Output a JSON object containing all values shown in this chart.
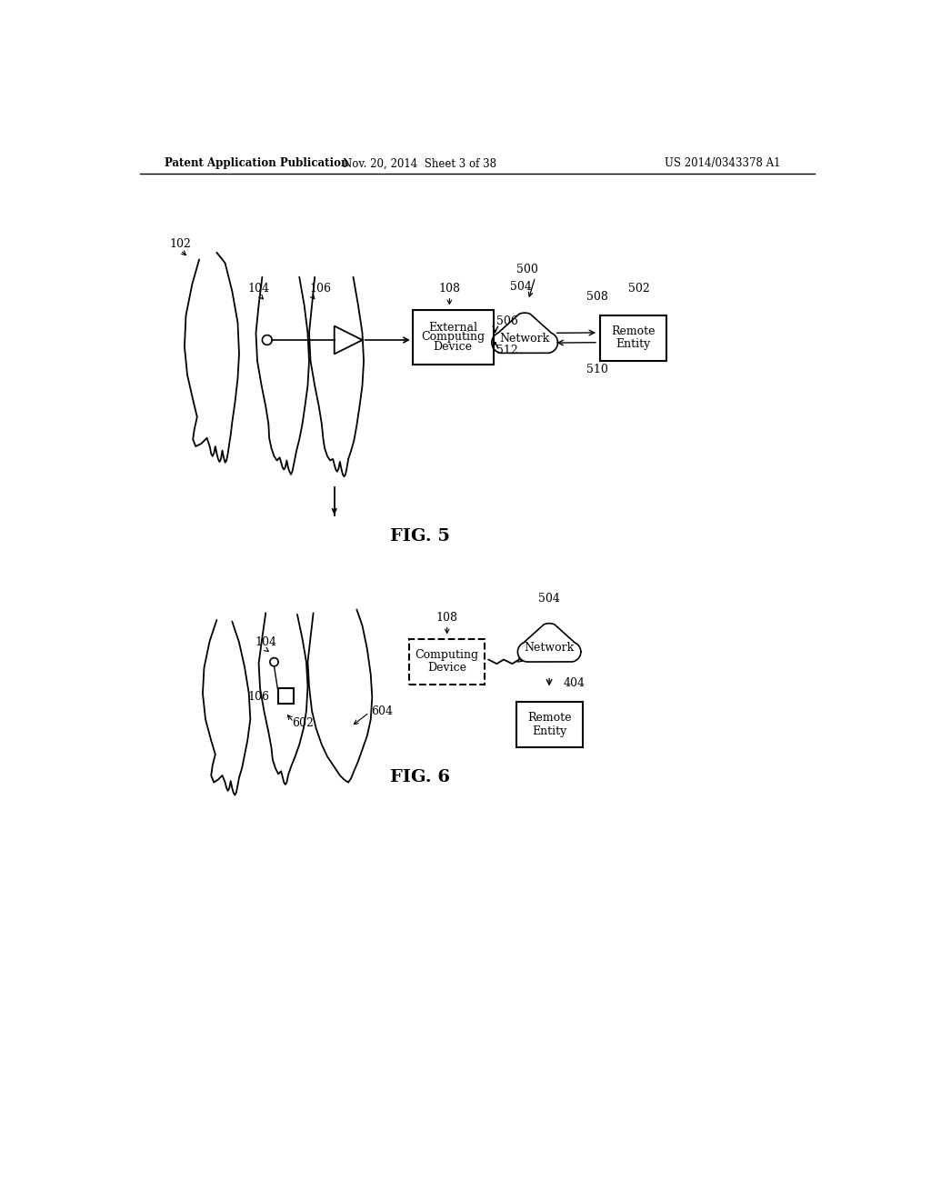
{
  "bg_color": "#ffffff",
  "header_left": "Patent Application Publication",
  "header_mid": "Nov. 20, 2014  Sheet 3 of 38",
  "header_right": "US 2014/0343378 A1",
  "fig5_label": "FIG. 5",
  "fig6_label": "FIG. 6",
  "line_color": "#000000",
  "text_color": "#000000"
}
